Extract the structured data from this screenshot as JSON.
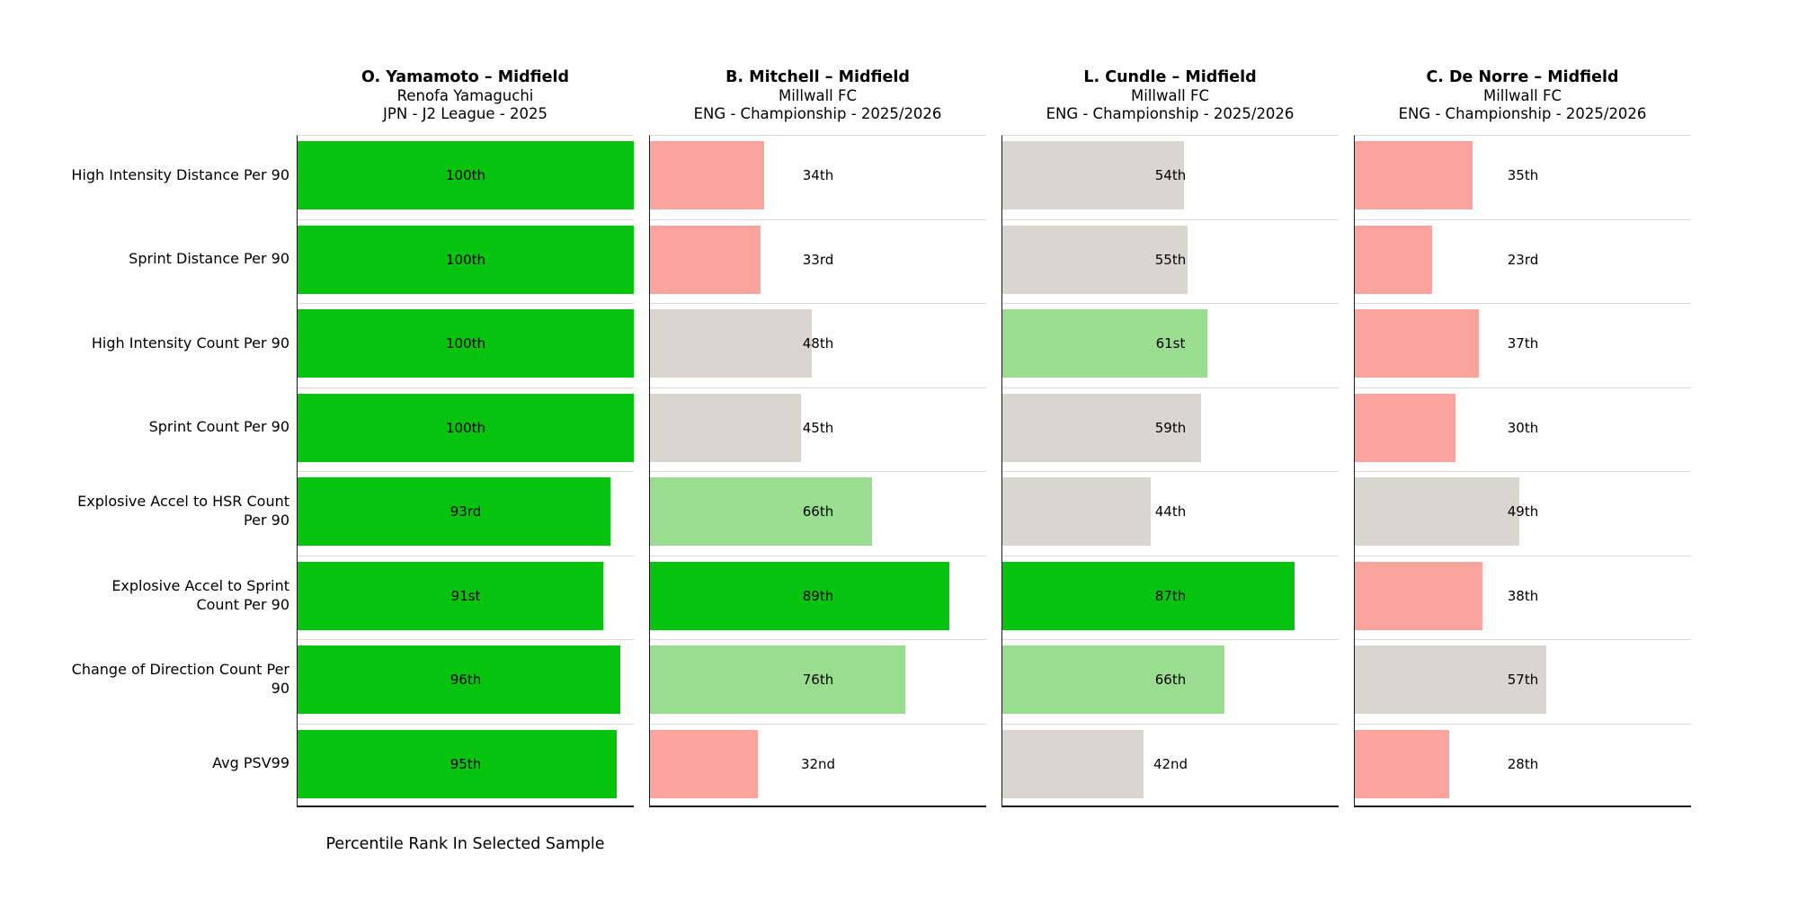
{
  "chart_data": {
    "type": "bar",
    "orientation": "horizontal",
    "xlabel": "Percentile Rank In Selected Sample",
    "xlim": [
      0,
      100
    ],
    "grid": false,
    "legend_position": "none",
    "categories": [
      "High Intensity Distance Per 90",
      "Sprint Distance Per 90",
      "High Intensity Count Per 90",
      "Sprint Count Per 90",
      "Explosive Accel to HSR Count\nPer 90",
      "Explosive Accel to Sprint\nCount Per 90",
      "Change of Direction Count Per\n90",
      "Avg PSV99"
    ],
    "series": [
      {
        "player": "O. Yamamoto – Midfield",
        "team": "Renofa Yamaguchi",
        "competition": "JPN - J2 League - 2025",
        "values": [
          100,
          100,
          100,
          100,
          93,
          91,
          96,
          95
        ],
        "value_labels": [
          "100th",
          "100th",
          "100th",
          "100th",
          "93rd",
          "91st",
          "96th",
          "95th"
        ]
      },
      {
        "player": "B. Mitchell – Midfield",
        "team": "Millwall FC",
        "competition": "ENG - Championship - 2025/2026",
        "values": [
          34,
          33,
          48,
          45,
          66,
          89,
          76,
          32
        ],
        "value_labels": [
          "34th",
          "33rd",
          "48th",
          "45th",
          "66th",
          "89th",
          "76th",
          "32nd"
        ]
      },
      {
        "player": "L. Cundle – Midfield",
        "team": "Millwall FC",
        "competition": "ENG - Championship - 2025/2026",
        "values": [
          54,
          55,
          61,
          59,
          44,
          87,
          66,
          42
        ],
        "value_labels": [
          "54th",
          "55th",
          "61st",
          "59th",
          "44th",
          "87th",
          "66th",
          "42nd"
        ]
      },
      {
        "player": "C. De Norre – Midfield",
        "team": "Millwall FC",
        "competition": "ENG - Championship - 2025/2026",
        "values": [
          35,
          23,
          37,
          30,
          49,
          38,
          57,
          28
        ],
        "value_labels": [
          "35th",
          "23rd",
          "37th",
          "30th",
          "49th",
          "38th",
          "57th",
          "28th"
        ]
      }
    ],
    "colors": {
      "high": "#06c30d",
      "mid_high": "#9bdd90",
      "mid": "#d9d6d0",
      "low": "#fba49e",
      "separator": "#dcdad6",
      "spine": "#1a1a1a"
    },
    "color_rules": [
      {
        "min_value": 85,
        "color_key": "high"
      },
      {
        "min_value": 60,
        "color_key": "mid_high"
      },
      {
        "min_value": 40,
        "color_key": "mid"
      },
      {
        "min_value": 0,
        "color_key": "low"
      }
    ]
  },
  "footer": {
    "xlabel": "Percentile Rank In Selected Sample"
  }
}
